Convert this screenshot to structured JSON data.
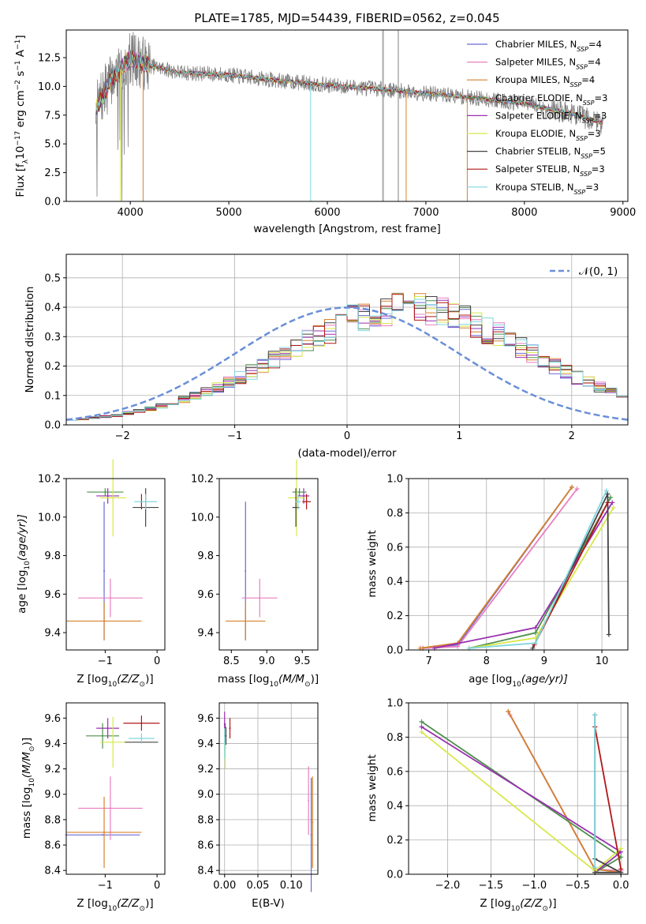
{
  "figure": {
    "title": "PLATE=1785, MJD=54439, FIBERID=0562, z=0.045",
    "colors": {
      "Chabrier MILES": "#6a6ad6",
      "Salpeter MILES": "#e87fc0",
      "Kroupa MILES": "#d6822e",
      "Chabrier ELODIE": "#4f8f4f",
      "Salpeter ELODIE": "#9a2fb0",
      "Kroupa ELODIE": "#d8e84a",
      "Chabrier STELIB": "#444444",
      "Salpeter STELIB": "#b01818",
      "Kroupa STELIB": "#7fd6df",
      "data": "#808080",
      "normal": "#6a8fd8"
    }
  },
  "chart_data": [
    {
      "id": "spectrum",
      "type": "line",
      "title": "PLATE=1785, MJD=54439, FIBERID=0562, z=0.045",
      "xlabel": "wavelength [Angstrom, rest frame]",
      "ylabel": "Flux [f",
      "ylabel_sub": "λ",
      "ylabel_rest1": "10",
      "ylabel_exp1": "−17",
      "ylabel_rest2": " erg cm",
      "ylabel_exp2": "−2",
      "ylabel_rest3": " s",
      "ylabel_exp3": "−1",
      "ylabel_rest4": " A",
      "ylabel_exp4": "−1",
      "ylabel_end": "]",
      "xlim": [
        3350,
        9050
      ],
      "ylim": [
        0,
        14.9
      ],
      "xticks": [
        "4000",
        "5000",
        "6000",
        "7000",
        "8000",
        "9000"
      ],
      "yticks": [
        "0.0",
        "2.5",
        "5.0",
        "7.5",
        "10.0",
        "12.5"
      ],
      "legend_position": "top-right",
      "legend": [
        {
          "model": "Chabrier MILES",
          "n": "4"
        },
        {
          "model": "Salpeter MILES",
          "n": "4"
        },
        {
          "model": "Kroupa MILES",
          "n": "4"
        },
        {
          "model": "Chabrier ELODIE",
          "n": "3"
        },
        {
          "model": "Salpeter ELODIE",
          "n": "3"
        },
        {
          "model": "Kroupa ELODIE",
          "n": "3"
        },
        {
          "model": "Chabrier STELIB",
          "n": "5"
        },
        {
          "model": "Salpeter STELIB",
          "n": "3"
        },
        {
          "model": "Kroupa STELIB",
          "n": "3"
        }
      ],
      "legend_prefix": "N",
      "legend_sub": "SSP",
      "continuum": [
        [
          3650,
          8.0
        ],
        [
          3800,
          10.5
        ],
        [
          3900,
          11.5
        ],
        [
          4000,
          12.5
        ],
        [
          4200,
          11.8
        ],
        [
          4500,
          11.2
        ],
        [
          5000,
          11.0
        ],
        [
          5500,
          10.5
        ],
        [
          6000,
          10.1
        ],
        [
          6500,
          9.8
        ],
        [
          7000,
          9.4
        ],
        [
          7500,
          9.0
        ],
        [
          8000,
          8.5
        ],
        [
          8500,
          7.6
        ],
        [
          8800,
          6.8
        ]
      ],
      "model_cutoffs": [
        {
          "model": "Kroupa ELODIE",
          "x": 3900
        },
        {
          "model": "Kroupa MILES",
          "x": 4130
        },
        {
          "model": "Kroupa STELIB",
          "x": 5830
        },
        {
          "model": "Kroupa MILES",
          "x": 6800
        },
        {
          "model": "Kroupa MILES",
          "x": 7420
        }
      ]
    },
    {
      "id": "residuals",
      "type": "histogram",
      "xlabel": "(data-model)/error",
      "ylabel": "Normed distribution",
      "xlim": [
        -2.5,
        2.5
      ],
      "ylim": [
        0,
        0.58
      ],
      "xticks": [
        "−2",
        "−1",
        "0",
        "1",
        "2"
      ],
      "yticks": [
        "0.0",
        "0.1",
        "0.2",
        "0.3",
        "0.4",
        "0.5"
      ],
      "grid": true,
      "legend_position": "top-right",
      "legend_label": "𝒩(0, 1)",
      "bin_width": 0.1,
      "bin_start": -2.5,
      "envelope": [
        0.017,
        0.02,
        0.024,
        0.028,
        0.033,
        0.04,
        0.047,
        0.055,
        0.065,
        0.075,
        0.087,
        0.1,
        0.113,
        0.128,
        0.145,
        0.16,
        0.18,
        0.2,
        0.22,
        0.242,
        0.265,
        0.285,
        0.305,
        0.32,
        0.34,
        0.36,
        0.37,
        0.38,
        0.39,
        0.395,
        0.4,
        0.395,
        0.39,
        0.385,
        0.37,
        0.36,
        0.34,
        0.32,
        0.305,
        0.285,
        0.265,
        0.242,
        0.22,
        0.2,
        0.18,
        0.16,
        0.145,
        0.128,
        0.113,
        0.1
      ]
    },
    {
      "id": "age-vs-Z",
      "type": "scatter",
      "xlabel": "Z [log",
      "xlabel_sub": "10",
      "xlabel_rest": "(Z/Z",
      "xlabel_odot": "⊙",
      "xlabel_end": ")]",
      "ylabel": "age  [log",
      "ylabel_sub": "10",
      "ylabel_rest": "(age/yr)]",
      "xlim": [
        -1.75,
        0.15
      ],
      "ylim": [
        9.31,
        10.2
      ],
      "xticks": [
        "−1",
        "0"
      ],
      "yticks": [
        "9.4",
        "9.6",
        "9.8",
        "10.0",
        "10.2"
      ],
      "points": [
        {
          "model": "Chabrier MILES",
          "x": -1.02,
          "xerr": 0.0,
          "y": 9.72,
          "yerr": 0.36
        },
        {
          "model": "Salpeter MILES",
          "x": -0.9,
          "xerr": 0.62,
          "y": 9.58,
          "yerr": 0.1
        },
        {
          "model": "Kroupa MILES",
          "x": -1.02,
          "xerr": 0.72,
          "y": 9.46,
          "yerr": 0.1
        },
        {
          "model": "Chabrier ELODIE",
          "x": -1.0,
          "xerr": 0.35,
          "y": 10.13,
          "yerr": 0.02
        },
        {
          "model": "Salpeter ELODIE",
          "x": -0.95,
          "xerr": 0.22,
          "y": 10.11,
          "yerr": 0.04
        },
        {
          "model": "Kroupa ELODIE",
          "x": -0.85,
          "xerr": 0.25,
          "y": 10.1,
          "yerr": 0.2
        },
        {
          "model": "Chabrier STELIB",
          "x": -0.22,
          "xerr": 0.25,
          "y": 10.05,
          "yerr": 0.1
        },
        {
          "model": "Salpeter STELIB",
          "x": -0.3,
          "xerr": 0.0,
          "y": 10.08,
          "yerr": 0.04
        },
        {
          "model": "Kroupa STELIB",
          "x": -0.22,
          "xerr": 0.22,
          "y": 10.08,
          "yerr": 0.04
        }
      ]
    },
    {
      "id": "age-vs-mass",
      "type": "scatter",
      "xlabel": "mass [log",
      "xlabel_sub": "10",
      "xlabel_rest": "(M/M",
      "xlabel_odot": "⊙",
      "xlabel_end": ")]",
      "xlim": [
        8.33,
        9.72
      ],
      "ylim": [
        9.31,
        10.2
      ],
      "xticks": [
        "8.5",
        "9.0",
        "9.5"
      ],
      "yticks": [
        "9.4",
        "9.6",
        "9.8",
        "10.0",
        "10.2"
      ],
      "points": [
        {
          "model": "Chabrier MILES",
          "x": 8.7,
          "xerr": 0.0,
          "y": 9.72,
          "yerr": 0.36
        },
        {
          "model": "Salpeter MILES",
          "x": 8.9,
          "xerr": 0.25,
          "y": 9.58,
          "yerr": 0.1
        },
        {
          "model": "Kroupa MILES",
          "x": 8.7,
          "xerr": 0.28,
          "y": 9.46,
          "yerr": 0.1
        },
        {
          "model": "Chabrier ELODIE",
          "x": 9.46,
          "xerr": 0.1,
          "y": 10.13,
          "yerr": 0.02
        },
        {
          "model": "Salpeter ELODIE",
          "x": 9.52,
          "xerr": 0.08,
          "y": 10.11,
          "yerr": 0.04
        },
        {
          "model": "Kroupa ELODIE",
          "x": 9.42,
          "xerr": 0.12,
          "y": 10.1,
          "yerr": 0.2
        },
        {
          "model": "Chabrier STELIB",
          "x": 9.41,
          "xerr": 0.05,
          "y": 10.05,
          "yerr": 0.1
        },
        {
          "model": "Salpeter STELIB",
          "x": 9.56,
          "xerr": 0.06,
          "y": 10.08,
          "yerr": 0.04
        },
        {
          "model": "Kroupa STELIB",
          "x": 9.44,
          "xerr": 0.04,
          "y": 10.08,
          "yerr": 0.04
        }
      ]
    },
    {
      "id": "massweight-vs-age",
      "type": "line",
      "xlabel": "age  [log",
      "xlabel_sub": "10",
      "xlabel_rest": "(age/yr)]",
      "ylabel": "mass weight",
      "xlim": [
        6.65,
        10.45
      ],
      "ylim": [
        0,
        1.0
      ],
      "xticks": [
        "7",
        "8",
        "9",
        "10"
      ],
      "yticks": [
        "0.0",
        "0.2",
        "0.4",
        "0.6",
        "0.8",
        "1.0"
      ],
      "grid": true,
      "series": [
        {
          "model": "Chabrier MILES",
          "x": [
            6.9,
            7.5,
            9.48
          ],
          "y": [
            0.01,
            0.03,
            0.95
          ]
        },
        {
          "model": "Salpeter MILES",
          "x": [
            6.9,
            7.5,
            9.57
          ],
          "y": [
            0.01,
            0.02,
            0.94
          ]
        },
        {
          "model": "Kroupa MILES",
          "x": [
            6.85,
            7.5,
            9.48
          ],
          "y": [
            0.01,
            0.04,
            0.95
          ]
        },
        {
          "model": "Chabrier ELODIE",
          "x": [
            7.7,
            8.85,
            10.15
          ],
          "y": [
            0.01,
            0.1,
            0.89
          ]
        },
        {
          "model": "Salpeter ELODIE",
          "x": [
            7.1,
            8.85,
            10.18
          ],
          "y": [
            0.01,
            0.13,
            0.86
          ]
        },
        {
          "model": "Kroupa ELODIE",
          "x": [
            7.7,
            8.85,
            10.2
          ],
          "y": [
            0.01,
            0.07,
            0.83
          ]
        },
        {
          "model": "Chabrier STELIB",
          "x": [
            8.8,
            10.1,
            10.12
          ],
          "y": [
            0.01,
            0.91,
            0.09
          ]
        },
        {
          "model": "Salpeter STELIB",
          "x": [
            8.83,
            10.1
          ],
          "y": [
            0.03,
            0.86
          ]
        },
        {
          "model": "Kroupa STELIB",
          "x": [
            7.7,
            8.85,
            10.08
          ],
          "y": [
            0.01,
            0.04,
            0.93
          ]
        }
      ]
    },
    {
      "id": "mass-vs-Z",
      "type": "scatter",
      "xlabel": "Z [log",
      "xlabel_sub": "10",
      "xlabel_rest": "(Z/Z",
      "xlabel_odot": "⊙",
      "xlabel_end": ")]",
      "ylabel": "mass [log",
      "ylabel_sub": "10",
      "ylabel_rest": "(M/M",
      "ylabel_odot": "⊙",
      "ylabel_end": ")]",
      "xlim": [
        -1.75,
        0.15
      ],
      "ylim": [
        8.37,
        9.72
      ],
      "xticks": [
        "−1",
        "0"
      ],
      "yticks": [
        "8.4",
        "8.6",
        "8.8",
        "9.0",
        "9.2",
        "9.4",
        "9.6"
      ],
      "points": [
        {
          "model": "Chabrier MILES",
          "x": -1.05,
          "xerr": 0.72,
          "y": 8.68,
          "yerr": 0.0
        },
        {
          "model": "Salpeter MILES",
          "x": -0.9,
          "xerr": 0.62,
          "y": 8.89,
          "yerr": 0.25
        },
        {
          "model": "Kroupa MILES",
          "x": -1.02,
          "xerr": 0.72,
          "y": 8.7,
          "yerr": 0.28
        },
        {
          "model": "Chabrier ELODIE",
          "x": -1.05,
          "xerr": 0.32,
          "y": 9.46,
          "yerr": 0.1
        },
        {
          "model": "Salpeter ELODIE",
          "x": -0.95,
          "xerr": 0.22,
          "y": 9.52,
          "yerr": 0.08
        },
        {
          "model": "Kroupa ELODIE",
          "x": -0.85,
          "xerr": 0.25,
          "y": 9.41,
          "yerr": 0.2
        },
        {
          "model": "Chabrier STELIB",
          "x": -0.3,
          "xerr": 0.32,
          "y": 9.41,
          "yerr": 0.0
        },
        {
          "model": "Salpeter STELIB",
          "x": -0.3,
          "xerr": 0.35,
          "y": 9.56,
          "yerr": 0.06
        },
        {
          "model": "Kroupa STELIB",
          "x": -0.3,
          "xerr": 0.25,
          "y": 9.44,
          "yerr": 0.04
        }
      ]
    },
    {
      "id": "mass-vs-EBV",
      "type": "scatter",
      "xlabel": "E(B-V)",
      "xlim": [
        -0.008,
        0.14
      ],
      "ylim": [
        8.37,
        9.72
      ],
      "xticks": [
        "0.00",
        "0.05",
        "0.10"
      ],
      "yticks": [
        "8.4",
        "8.6",
        "8.8",
        "9.0",
        "9.2",
        "9.4",
        "9.6"
      ],
      "grid": true,
      "points": [
        {
          "model": "Chabrier MILES",
          "x": 0.13,
          "xerr": 0.0,
          "y": 8.68,
          "yerr": 0.45
        },
        {
          "model": "Salpeter MILES",
          "x": 0.126,
          "xerr": 0.0,
          "y": 8.95,
          "yerr": 0.27
        },
        {
          "model": "Kroupa MILES",
          "x": 0.132,
          "xerr": 0.0,
          "y": 8.78,
          "yerr": 0.36
        },
        {
          "model": "Chabrier ELODIE",
          "x": 0.001,
          "xerr": 0.0,
          "y": 9.46,
          "yerr": 0.1
        },
        {
          "model": "Salpeter ELODIE",
          "x": 0.0,
          "xerr": 0.0,
          "y": 9.55,
          "yerr": 0.1
        },
        {
          "model": "Kroupa ELODIE",
          "x": 0.001,
          "xerr": 0.0,
          "y": 9.36,
          "yerr": 0.16
        },
        {
          "model": "Chabrier STELIB",
          "x": 0.002,
          "xerr": 0.0,
          "y": 9.46,
          "yerr": 0.07
        },
        {
          "model": "Salpeter STELIB",
          "x": 0.008,
          "xerr": 0.0,
          "y": 9.52,
          "yerr": 0.08
        },
        {
          "model": "Kroupa STELIB",
          "x": 0.0,
          "xerr": 0.0,
          "y": 9.4,
          "yerr": 0.12
        }
      ]
    },
    {
      "id": "massweight-vs-Z",
      "type": "line",
      "xlabel": "Z [log",
      "xlabel_sub": "10",
      "xlabel_rest": "(Z/Z",
      "xlabel_odot": "⊙",
      "xlabel_end": ")]",
      "ylabel": "mass weight",
      "xlim": [
        -2.45,
        0.08
      ],
      "ylim": [
        0,
        1.0
      ],
      "xticks": [
        "−2.0",
        "−1.5",
        "−1.0",
        "−0.5",
        "0.0"
      ],
      "yticks": [
        "0.0",
        "0.2",
        "0.4",
        "0.6",
        "0.8",
        "1.0"
      ],
      "grid": true,
      "series": [
        {
          "model": "Chabrier MILES",
          "x": [
            -1.3,
            -0.3,
            0.0
          ],
          "y": [
            0.95,
            0.03,
            0.01
          ]
        },
        {
          "model": "Salpeter MILES",
          "x": [
            -1.28,
            -0.3,
            0.0
          ],
          "y": [
            0.93,
            0.03,
            0.02
          ]
        },
        {
          "model": "Kroupa MILES",
          "x": [
            -1.3,
            -0.3,
            0.0
          ],
          "y": [
            0.95,
            0.03,
            0.01
          ]
        },
        {
          "model": "Chabrier ELODIE",
          "x": [
            -2.3,
            0.0,
            -0.3
          ],
          "y": [
            0.89,
            0.1,
            0.01
          ]
        },
        {
          "model": "Salpeter ELODIE",
          "x": [
            -2.3,
            0.0,
            -0.3
          ],
          "y": [
            0.86,
            0.13,
            0.01
          ]
        },
        {
          "model": "Kroupa ELODIE",
          "x": [
            -2.3,
            -0.3,
            0.0
          ],
          "y": [
            0.83,
            0.02,
            0.15
          ]
        },
        {
          "model": "Chabrier STELIB",
          "x": [
            -0.3,
            -0.3,
            0.0,
            -0.3
          ],
          "y": [
            0.93,
            0.09,
            0.01,
            0.01
          ]
        },
        {
          "model": "Salpeter STELIB",
          "x": [
            -0.3,
            0.0
          ],
          "y": [
            0.86,
            0.03
          ]
        },
        {
          "model": "Kroupa STELIB",
          "x": [
            -0.3,
            -0.3
          ],
          "y": [
            0.93,
            0.04
          ]
        }
      ]
    }
  ]
}
